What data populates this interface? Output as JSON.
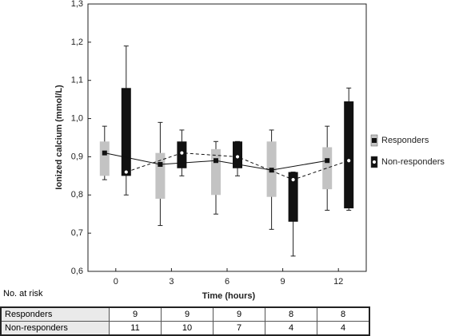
{
  "chart_data": {
    "type": "box",
    "y_label": "Ionized calcium (mmol/L)",
    "x_label": "Time (hours)",
    "x": [
      0,
      3,
      6,
      9,
      12
    ],
    "xlim": [
      -1.5,
      13.5
    ],
    "xticks": [
      0,
      3,
      6,
      9,
      12
    ],
    "ylim": [
      0.6,
      1.3
    ],
    "yticks": [
      {
        "value": 0.6,
        "label": "0,6"
      },
      {
        "value": 0.7,
        "label": "0,7"
      },
      {
        "value": 0.8,
        "label": "0,8"
      },
      {
        "value": 0.9,
        "label": "0,9"
      },
      {
        "value": 1.0,
        "label": "1,0"
      },
      {
        "value": 1.1,
        "label": "1,1"
      },
      {
        "value": 1.2,
        "label": "1,2"
      },
      {
        "value": 1.3,
        "label": "1,3"
      }
    ],
    "series": [
      {
        "name": "Responders",
        "color": "#c3c3c3",
        "marker": "square",
        "line_style": "solid",
        "whisker_low": [
          0.84,
          0.72,
          0.75,
          0.71,
          0.76
        ],
        "q1": [
          0.85,
          0.79,
          0.8,
          0.795,
          0.815
        ],
        "q3": [
          0.94,
          0.91,
          0.92,
          0.94,
          0.925
        ],
        "whisker_high": [
          0.98,
          0.99,
          0.94,
          0.97,
          0.98
        ],
        "mean": [
          0.91,
          0.88,
          0.89,
          0.865,
          0.89
        ]
      },
      {
        "name": "Non-responders",
        "color": "#111111",
        "marker": "circle",
        "line_style": "dashed",
        "whisker_low": [
          0.8,
          0.85,
          0.85,
          0.64,
          0.76
        ],
        "q1": [
          0.85,
          0.87,
          0.87,
          0.73,
          0.765
        ],
        "q3": [
          1.08,
          0.94,
          0.94,
          0.86,
          1.045
        ],
        "whisker_high": [
          1.19,
          0.97,
          0.94,
          0.86,
          1.08
        ],
        "mean": [
          0.86,
          0.91,
          0.9,
          0.84,
          0.89
        ]
      }
    ]
  },
  "risk_table": {
    "title": "No. at risk",
    "rows": [
      {
        "label": "Responders",
        "values": [
          9,
          9,
          9,
          8,
          8
        ]
      },
      {
        "label": "Non-responders",
        "values": [
          11,
          10,
          7,
          4,
          4
        ]
      }
    ]
  }
}
